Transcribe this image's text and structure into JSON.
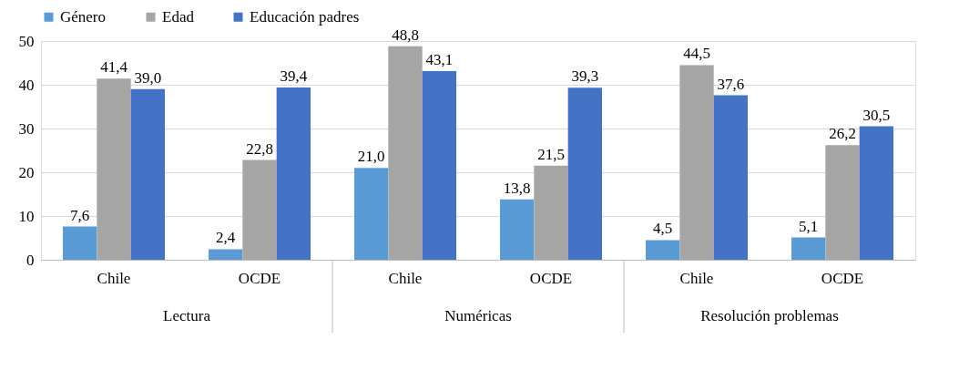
{
  "chart_data": {
    "type": "bar",
    "categories": [
      "Chile",
      "OCDE",
      "Chile",
      "OCDE",
      "Chile",
      "OCDE"
    ],
    "series": [
      {
        "name": "Género",
        "color": "#5b9bd5",
        "values": [
          7.6,
          2.4,
          21.0,
          13.8,
          4.5,
          5.1
        ],
        "value_labels": [
          "7,6",
          "2,4",
          "21,0",
          "13,8",
          "4,5",
          "5,1"
        ]
      },
      {
        "name": "Edad",
        "color": "#a5a5a5",
        "values": [
          41.4,
          22.8,
          48.8,
          21.5,
          44.5,
          26.2
        ],
        "value_labels": [
          "41,4",
          "22,8",
          "48,8",
          "21,5",
          "44,5",
          "26,2"
        ]
      },
      {
        "name": "Educación padres",
        "color": "#4472c4",
        "values": [
          39.0,
          39.4,
          43.1,
          39.3,
          37.6,
          30.5
        ],
        "value_labels": [
          "39,0",
          "39,4",
          "43,1",
          "39,3",
          "37,6",
          "30,5"
        ]
      }
    ],
    "annotations": [
      "Lectura",
      "Numéricas",
      "Resolución problemas"
    ],
    "ylim": [
      0,
      50
    ],
    "yticks": [
      0,
      10,
      20,
      30,
      40,
      50
    ],
    "grid": "y",
    "legend": "top"
  }
}
